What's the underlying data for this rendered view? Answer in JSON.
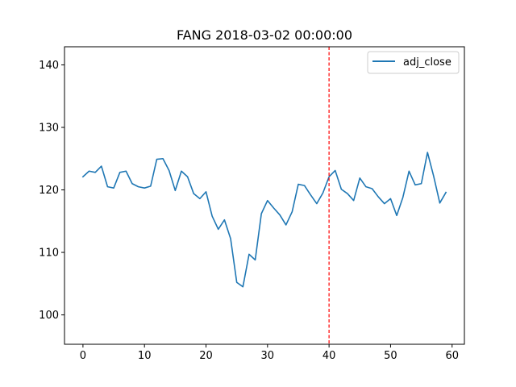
{
  "chart_data": {
    "type": "line",
    "title": "FANG 2018-03-02 00:00:00",
    "xlabel": "",
    "ylabel": "",
    "xlim": [
      -3,
      62
    ],
    "ylim": [
      95.3,
      142.9
    ],
    "x_ticks": [
      0,
      10,
      20,
      30,
      40,
      50,
      60
    ],
    "y_ticks": [
      100,
      110,
      120,
      130,
      140
    ],
    "grid": false,
    "legend_position": "top-right",
    "series": [
      {
        "name": "adj_close",
        "color": "#1f77b4",
        "x": [
          0,
          1,
          2,
          3,
          4,
          5,
          6,
          7,
          8,
          9,
          10,
          11,
          12,
          13,
          14,
          15,
          16,
          17,
          18,
          19,
          20,
          21,
          22,
          23,
          24,
          25,
          26,
          27,
          28,
          29,
          30,
          31,
          32,
          33,
          34,
          35,
          36,
          37,
          38,
          39,
          40,
          41,
          42,
          43,
          44,
          45,
          46,
          47,
          48,
          49,
          50,
          51,
          52,
          53,
          54,
          55,
          56,
          57,
          58,
          59
        ],
        "values": [
          122.1,
          123.0,
          122.8,
          123.8,
          120.5,
          120.3,
          122.8,
          123.0,
          121.0,
          120.5,
          120.3,
          120.6,
          124.9,
          125.0,
          123.1,
          119.9,
          123.0,
          122.1,
          119.4,
          118.6,
          119.7,
          115.8,
          113.7,
          115.2,
          112.2,
          105.2,
          104.5,
          109.7,
          108.8,
          116.2,
          118.3,
          117.1,
          116.0,
          114.4,
          116.5,
          120.9,
          120.7,
          119.2,
          117.8,
          119.5,
          122.1,
          123.1,
          120.1,
          119.4,
          118.3,
          121.9,
          120.5,
          120.2,
          118.9,
          117.8,
          118.6,
          115.9,
          118.8,
          123.0,
          120.8,
          121.0,
          126.0,
          122.2,
          117.9,
          119.6
        ]
      }
    ],
    "annotations": [
      {
        "type": "vline",
        "x": 40,
        "color": "#ff0000",
        "style": "dashed"
      }
    ]
  }
}
